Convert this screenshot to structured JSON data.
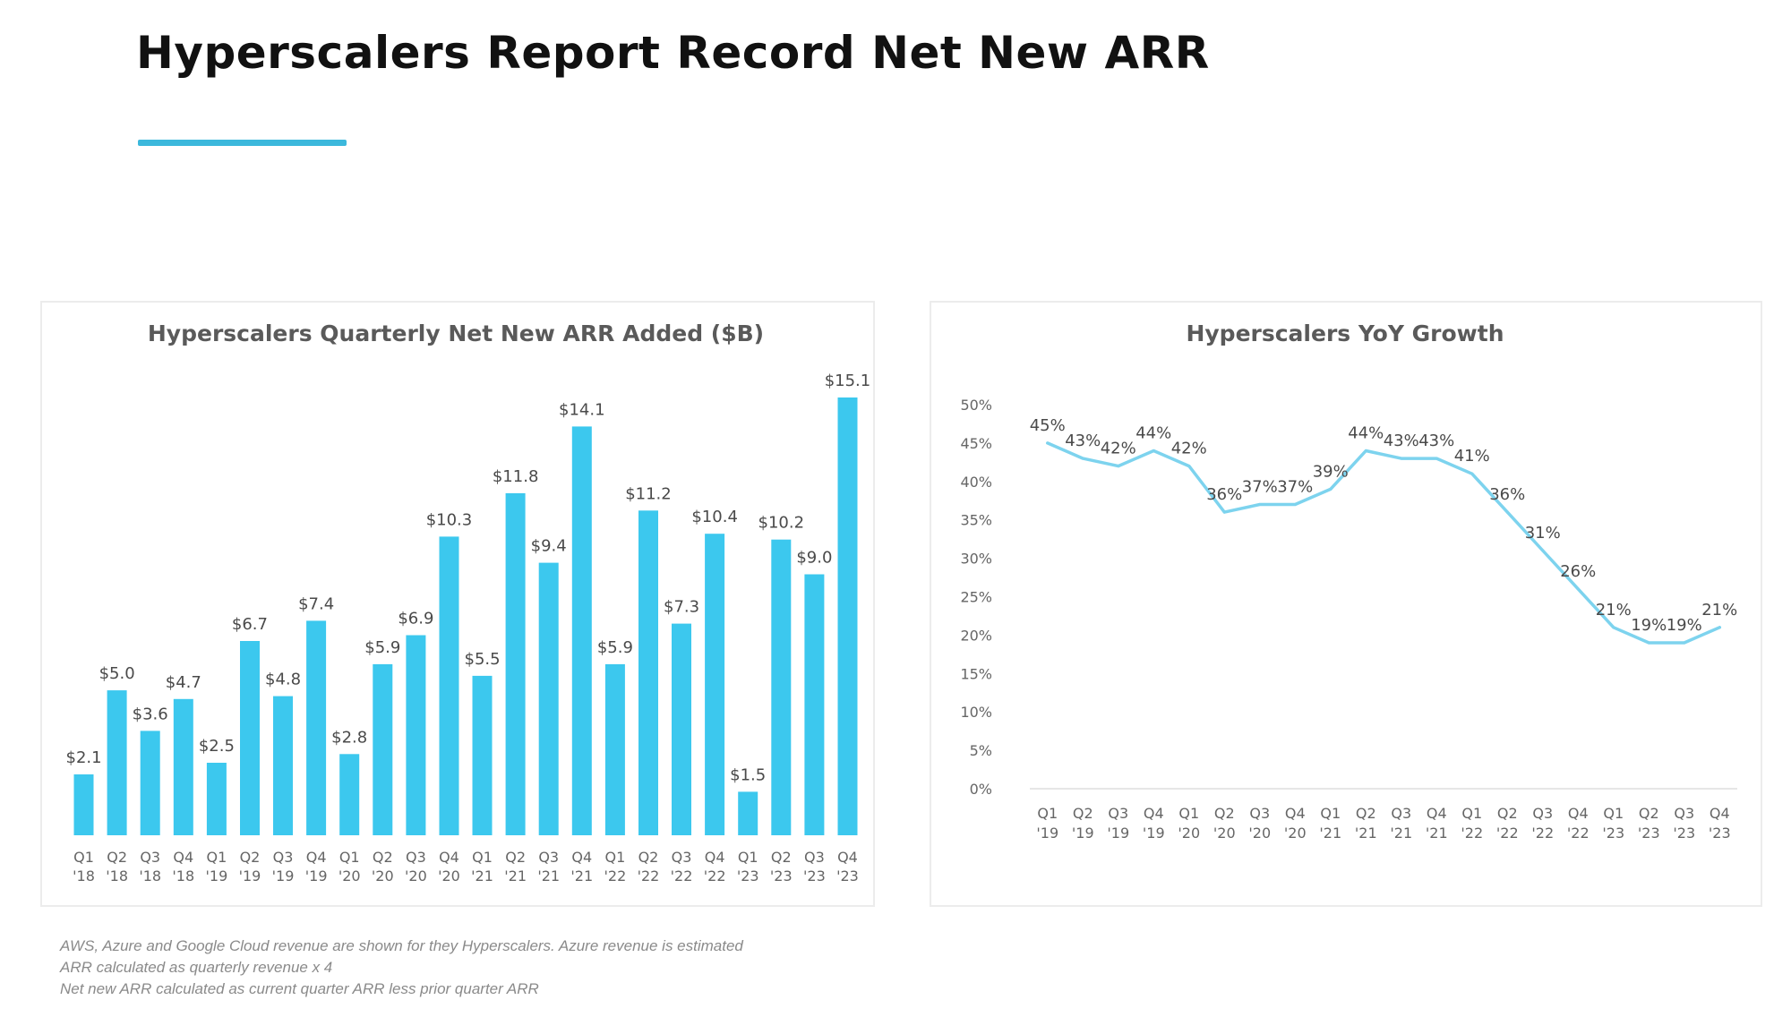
{
  "slide": {
    "title": "Hyperscalers Report Record Net New ARR",
    "accent_color": "#3cb8dc",
    "footnotes": [
      "AWS, Azure and Google Cloud revenue are shown for they Hyperscalers. Azure revenue is estimated",
      "ARR calculated as quarterly revenue  x 4",
      "Net new ARR calculated as current quarter ARR less prior quarter ARR"
    ]
  },
  "chart_data": [
    {
      "type": "bar",
      "title": "Hyperscalers Quarterly Net New ARR Added ($B)",
      "xlabel": "",
      "ylabel": "",
      "color": "#3cc8ee",
      "categories": [
        [
          "Q1",
          "'18"
        ],
        [
          "Q2",
          "'18"
        ],
        [
          "Q3",
          "'18"
        ],
        [
          "Q4",
          "'18"
        ],
        [
          "Q1",
          "'19"
        ],
        [
          "Q2",
          "'19"
        ],
        [
          "Q3",
          "'19"
        ],
        [
          "Q4",
          "'19"
        ],
        [
          "Q1",
          "'20"
        ],
        [
          "Q2",
          "'20"
        ],
        [
          "Q3",
          "'20"
        ],
        [
          "Q4",
          "'20"
        ],
        [
          "Q1",
          "'21"
        ],
        [
          "Q2",
          "'21"
        ],
        [
          "Q3",
          "'21"
        ],
        [
          "Q4",
          "'21"
        ],
        [
          "Q1",
          "'22"
        ],
        [
          "Q2",
          "'22"
        ],
        [
          "Q3",
          "'22"
        ],
        [
          "Q4",
          "'22"
        ],
        [
          "Q1",
          "'23"
        ],
        [
          "Q2",
          "'23"
        ],
        [
          "Q3",
          "'23"
        ],
        [
          "Q4",
          "'23"
        ]
      ],
      "values": [
        2.1,
        5.0,
        3.6,
        4.7,
        2.5,
        6.7,
        4.8,
        7.4,
        2.8,
        5.9,
        6.9,
        10.3,
        5.5,
        11.8,
        9.4,
        14.1,
        5.9,
        11.2,
        7.3,
        10.4,
        1.5,
        10.2,
        9.0,
        15.1
      ],
      "data_labels": [
        "$2.1",
        "$5.0",
        "$3.6",
        "$4.7",
        "$2.5",
        "$6.7",
        "$4.8",
        "$7.4",
        "$2.8",
        "$5.9",
        "$6.9",
        "$10.3",
        "$5.5",
        "$11.8",
        "$9.4",
        "$14.1",
        "$5.9",
        "$11.2",
        "$7.3",
        "$10.4",
        "$1.5",
        "$10.2",
        "$9.0",
        "$15.1"
      ],
      "ylim": [
        0,
        15.1
      ],
      "grid": false,
      "legend": "none"
    },
    {
      "type": "line",
      "title": "Hyperscalers YoY Growth",
      "xlabel": "",
      "ylabel": "",
      "color": "#7dd3ee",
      "axis_line_color": "#e6e6e6",
      "categories": [
        [
          "Q1",
          "'19"
        ],
        [
          "Q2",
          "'19"
        ],
        [
          "Q3",
          "'19"
        ],
        [
          "Q4",
          "'19"
        ],
        [
          "Q1",
          "'20"
        ],
        [
          "Q2",
          "'20"
        ],
        [
          "Q3",
          "'20"
        ],
        [
          "Q4",
          "'20"
        ],
        [
          "Q1",
          "'21"
        ],
        [
          "Q2",
          "'21"
        ],
        [
          "Q3",
          "'21"
        ],
        [
          "Q4",
          "'21"
        ],
        [
          "Q1",
          "'22"
        ],
        [
          "Q2",
          "'22"
        ],
        [
          "Q3",
          "'22"
        ],
        [
          "Q4",
          "'22"
        ],
        [
          "Q1",
          "'23"
        ],
        [
          "Q2",
          "'23"
        ],
        [
          "Q3",
          "'23"
        ],
        [
          "Q4",
          "'23"
        ]
      ],
      "values": [
        45,
        43,
        42,
        44,
        42,
        36,
        37,
        37,
        39,
        44,
        43,
        43,
        41,
        36,
        31,
        26,
        21,
        19,
        19,
        21
      ],
      "data_labels": [
        "45%",
        "43%",
        "42%",
        "44%",
        "42%",
        "36%",
        "37%",
        "37%",
        "39%",
        "44%",
        "43%",
        "43%",
        "41%",
        "36%",
        "31%",
        "26%",
        "21%",
        "19%",
        "19%",
        "21%"
      ],
      "y_ticks": [
        0,
        5,
        10,
        15,
        20,
        25,
        30,
        35,
        40,
        45,
        50
      ],
      "y_tick_labels": [
        "0%",
        "5%",
        "10%",
        "15%",
        "20%",
        "25%",
        "30%",
        "35%",
        "40%",
        "45%",
        "50%"
      ],
      "ylim": [
        0,
        50
      ],
      "grid": false,
      "legend": "none"
    }
  ]
}
